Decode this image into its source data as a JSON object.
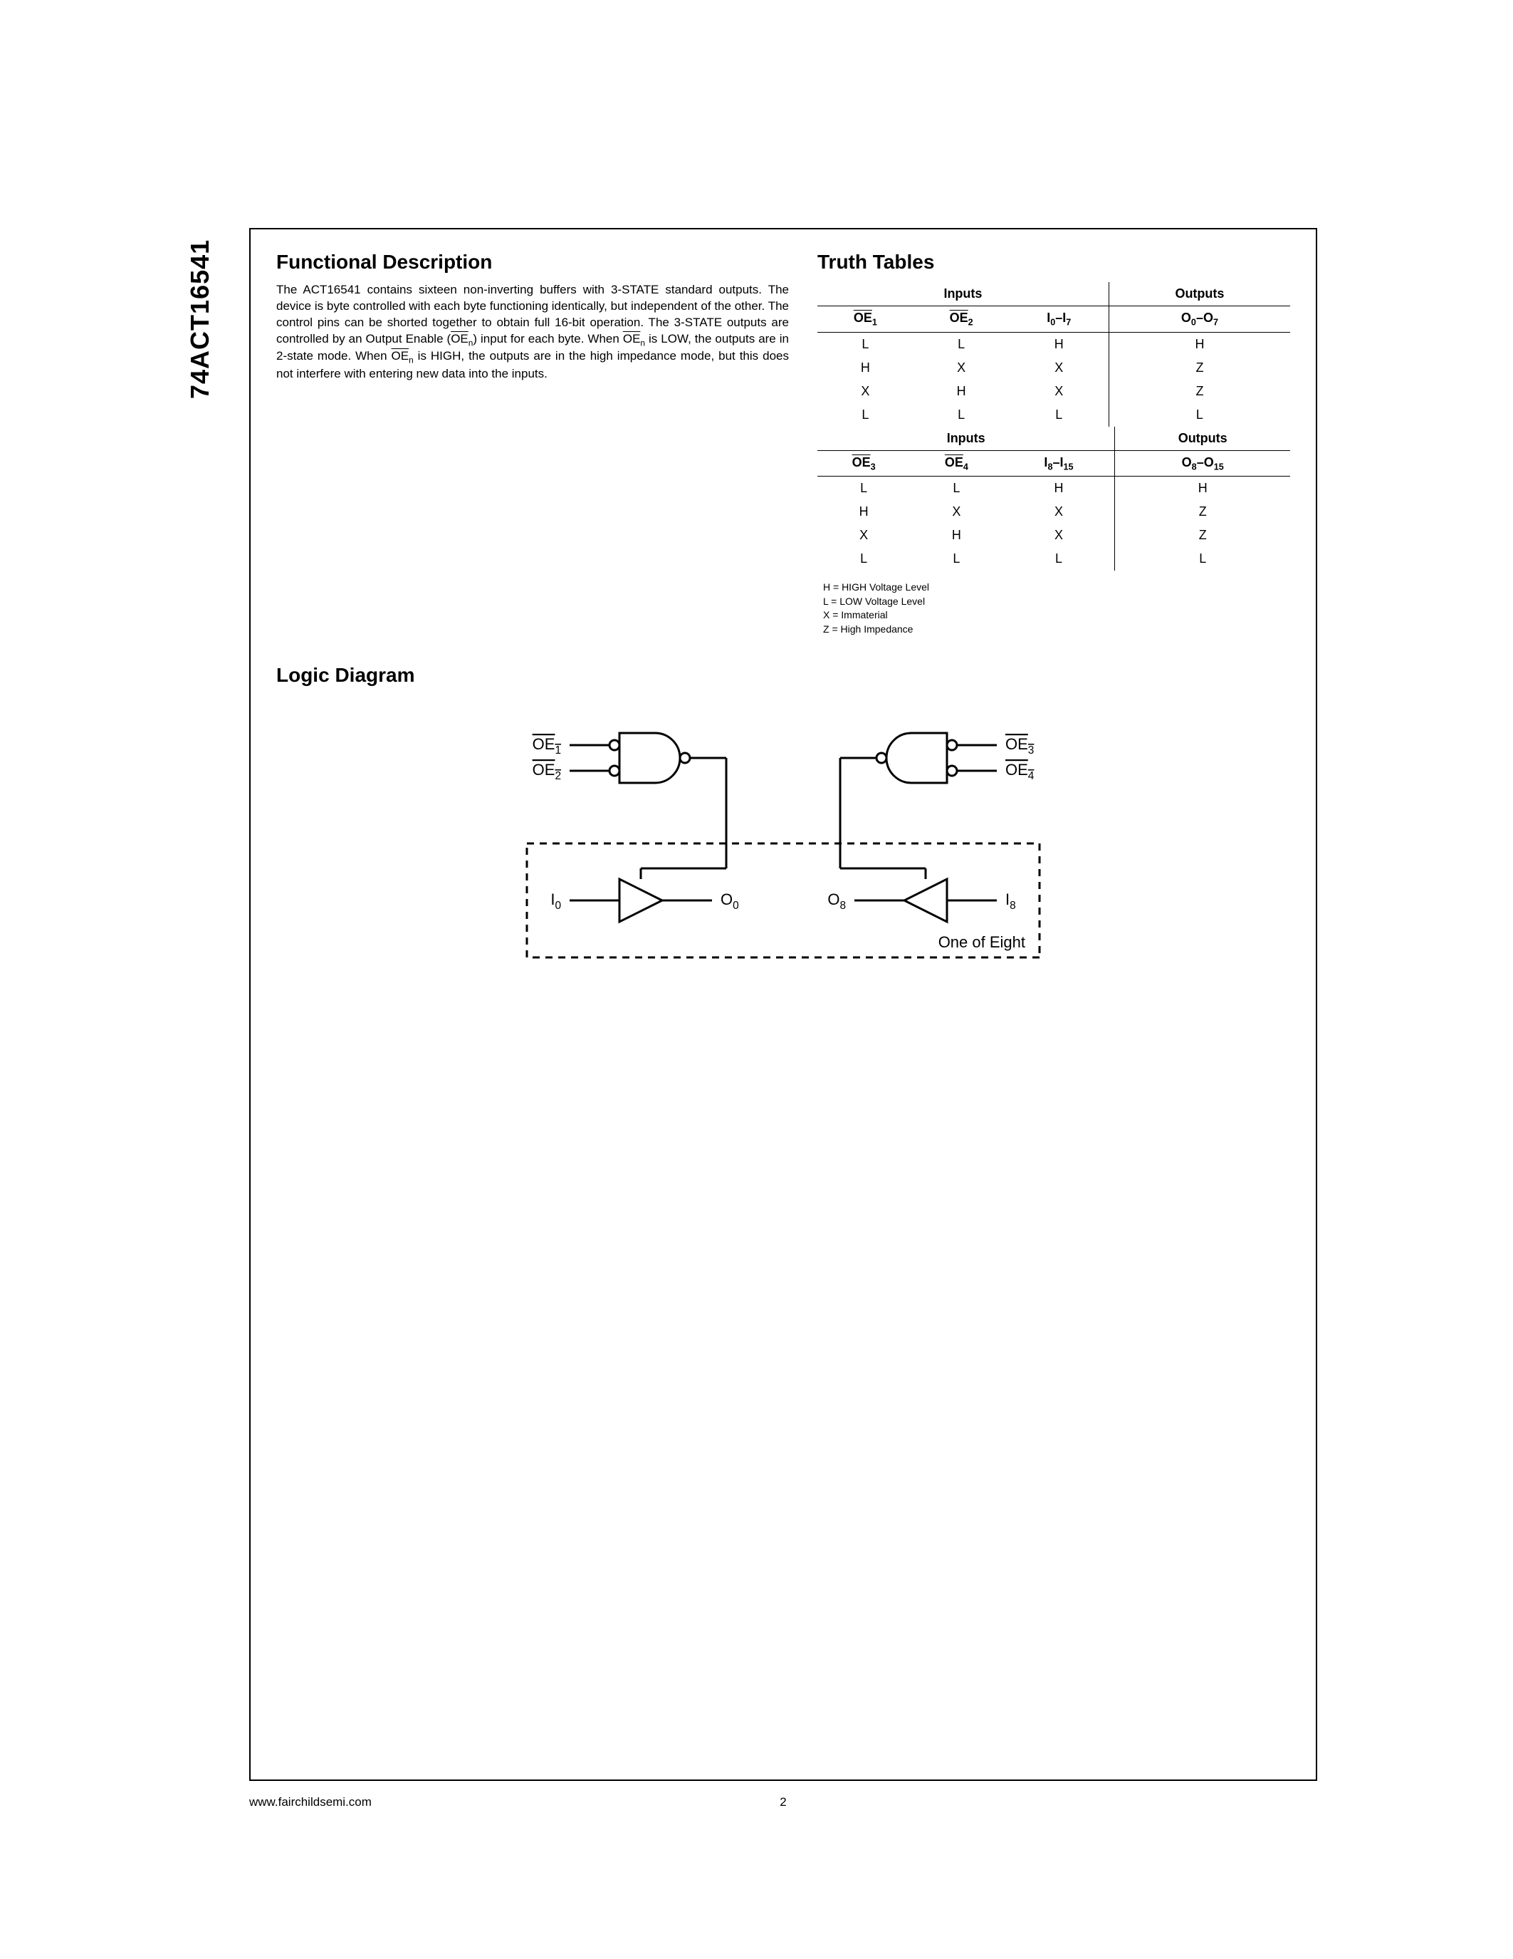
{
  "side_label": "74ACT16541",
  "sections": {
    "functional_title": "Functional Description",
    "truth_title": "Truth Tables",
    "logic_title": "Logic Diagram"
  },
  "description_html": "The ACT16541 contains sixteen non-inverting buffers with 3-STATE standard outputs. The device is byte controlled with each byte functioning identically, but independent of the other. The control pins can be shorted together to obtain full 16-bit operation. The 3-STATE outputs are controlled by an Output Enable (<span class=\"overline\">OE</span><span class=\"sub\">n</span>) input for each byte. When <span class=\"overline\">OE</span><span class=\"sub\">n</span> is LOW, the outputs are in 2-state mode. When <span class=\"overline\">OE</span><span class=\"sub\">n</span> is HIGH, the outputs are in the high impedance mode, but this does not interfere with entering new data into the inputs.",
  "table1": {
    "group_headers": [
      "Inputs",
      "Outputs"
    ],
    "col_headers_html": [
      "<span class=\"overline\">OE</span><span class=\"sub\">1</span>",
      "<span class=\"overline\">OE</span><span class=\"sub\">2</span>",
      "I<span class=\"sub\">0</span>–I<span class=\"sub\">7</span>",
      "O<span class=\"sub\">0</span>–O<span class=\"sub\">7</span>"
    ],
    "rows": [
      [
        "L",
        "L",
        "H",
        "H"
      ],
      [
        "H",
        "X",
        "X",
        "Z"
      ],
      [
        "X",
        "H",
        "X",
        "Z"
      ],
      [
        "L",
        "L",
        "L",
        "L"
      ]
    ]
  },
  "table2": {
    "group_headers": [
      "Inputs",
      "Outputs"
    ],
    "col_headers_html": [
      "<span class=\"overline\">OE</span><span class=\"sub\">3</span>",
      "<span class=\"overline\">OE</span><span class=\"sub\">4</span>",
      "I<span class=\"sub\">8</span>–I<span class=\"sub\">15</span>",
      "O<span class=\"sub\">8</span>–O<span class=\"sub\">15</span>"
    ],
    "rows": [
      [
        "L",
        "L",
        "H",
        "H"
      ],
      [
        "H",
        "X",
        "X",
        "Z"
      ],
      [
        "X",
        "H",
        "X",
        "Z"
      ],
      [
        "L",
        "L",
        "L",
        "L"
      ]
    ]
  },
  "legend": [
    "H = HIGH Voltage Level",
    "L = LOW Voltage Level",
    "X = Immaterial",
    "Z = High Impedance"
  ],
  "logic": {
    "labels": {
      "oe1": "OE",
      "oe1_sub": "1",
      "oe2": "OE",
      "oe2_sub": "2",
      "oe3": "OE",
      "oe3_sub": "3",
      "oe4": "OE",
      "oe4_sub": "4",
      "i0": "I",
      "i0_sub": "0",
      "o0": "O",
      "o0_sub": "0",
      "o8": "O",
      "o8_sub": "8",
      "i8": "I",
      "i8_sub": "8",
      "one_of_eight": "One of Eight"
    },
    "stroke": "#000000",
    "stroke_width": 3,
    "dash": "10,8",
    "font_size": 22
  },
  "footer": {
    "url": "www.fairchildsemi.com",
    "page": "2"
  },
  "colors": {
    "text": "#000000",
    "border": "#000000",
    "background": "#ffffff"
  }
}
